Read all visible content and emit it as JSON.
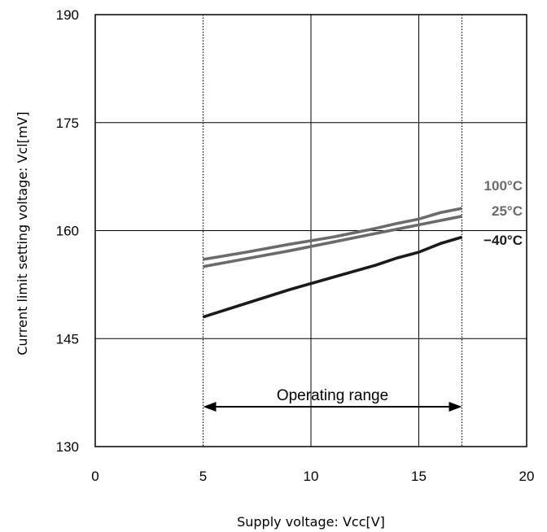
{
  "chart_data": {
    "type": "line",
    "title": "",
    "xlabel": "Supply voltage: Vcc[V]",
    "ylabel": "Current limit setting voltage: Vcl[mV]",
    "xlim": [
      0,
      20
    ],
    "ylim": [
      130,
      190
    ],
    "xticks": [
      0,
      5,
      10,
      15,
      20
    ],
    "yticks": [
      130,
      145,
      160,
      175,
      190
    ],
    "grid": true,
    "series": [
      {
        "name": "100°C",
        "color": "#6b6b6b",
        "x": [
          5,
          7,
          9,
          11,
          13,
          14,
          15,
          16,
          17
        ],
        "y": [
          156,
          157,
          158.1,
          159.1,
          160.3,
          161,
          161.6,
          162.5,
          163.1
        ]
      },
      {
        "name": "25°C",
        "color": "#6b6b6b",
        "x": [
          5,
          7,
          9,
          11,
          13,
          15,
          17
        ],
        "y": [
          155,
          156.1,
          157.2,
          158.4,
          159.6,
          160.8,
          162
        ]
      },
      {
        "name": "−40°C",
        "color": "#1a1a1a",
        "x": [
          5,
          7,
          9,
          11,
          13,
          14,
          15,
          16,
          17
        ],
        "y": [
          148,
          149.9,
          151.8,
          153.5,
          155.2,
          156.2,
          157,
          158.2,
          159.1
        ]
      }
    ],
    "dotted_lines_x": [
      5,
      17
    ],
    "annotation": {
      "text": "Operating range",
      "x_start": 5,
      "x_end": 17
    }
  }
}
